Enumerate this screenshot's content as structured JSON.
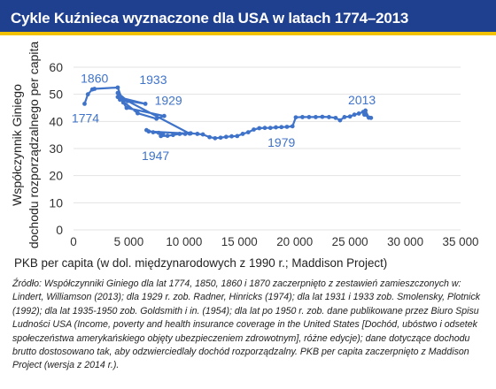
{
  "header": {
    "title": "Cykle Kuźnieca wyznaczone dla USA w latach 1774–2013"
  },
  "colors": {
    "title_bg": "#1f3f8f",
    "title_accent": "#f2c200",
    "series": "#3f73c9",
    "grid": "#e3e3e3"
  },
  "chart_data": {
    "type": "line",
    "xlabel": "PKB per capita (w dol. międzynarodowych z 1990 r.; Maddison Project)",
    "ylabel_line1": "Współczynnik Giniego",
    "ylabel_line2": "dochodu rozporządzalnego per capita",
    "xlim": [
      0,
      35000
    ],
    "ylim": [
      0,
      60
    ],
    "grid": true,
    "xticks": [
      0,
      5000,
      10000,
      15000,
      20000,
      25000,
      30000,
      35000
    ],
    "xtick_labels": [
      "0",
      "5 000",
      "10 000",
      "15 000",
      "20 000",
      "25 000",
      "30 000",
      "35 000"
    ],
    "yticks": [
      0,
      10,
      20,
      30,
      40,
      50,
      60
    ],
    "ytick_labels": [
      "0",
      "10",
      "20",
      "30",
      "40",
      "50",
      "60"
    ],
    "series": [
      {
        "points": [
          [
            1000,
            46.5
          ],
          [
            1300,
            50
          ],
          [
            1700,
            51.8
          ],
          [
            1900,
            52
          ],
          [
            4000,
            52.5
          ],
          [
            4500,
            47
          ],
          [
            4800,
            45
          ],
          [
            8200,
            42
          ],
          [
            7500,
            41
          ],
          [
            5800,
            43
          ],
          [
            4000,
            49
          ],
          [
            6500,
            46.5
          ],
          [
            4200,
            48
          ],
          [
            4000,
            50.5
          ],
          [
            4900,
            47.5
          ],
          [
            10500,
            35.5
          ],
          [
            6800,
            36.3
          ],
          [
            6600,
            36.8
          ],
          [
            7200,
            36
          ],
          [
            7700,
            35.8
          ],
          [
            8100,
            35.2
          ],
          [
            7900,
            34.6
          ],
          [
            8500,
            34.7
          ],
          [
            9000,
            35
          ],
          [
            9600,
            35.4
          ],
          [
            10100,
            35.4
          ],
          [
            10600,
            35.6
          ],
          [
            11200,
            35.4
          ],
          [
            11700,
            35.2
          ],
          [
            12300,
            34.2
          ],
          [
            12800,
            33.8
          ],
          [
            13300,
            34
          ],
          [
            13800,
            34.3
          ],
          [
            14300,
            34.5
          ],
          [
            14800,
            34.6
          ],
          [
            15300,
            35.4
          ],
          [
            15800,
            36
          ],
          [
            16300,
            37
          ],
          [
            16800,
            37.5
          ],
          [
            17300,
            37.6
          ],
          [
            17800,
            37.6
          ],
          [
            18300,
            37.8
          ],
          [
            18800,
            37.9
          ],
          [
            19300,
            38
          ],
          [
            19800,
            38.2
          ],
          [
            20100,
            41.5
          ],
          [
            20700,
            41.6
          ],
          [
            21300,
            41.6
          ],
          [
            21900,
            41.6
          ],
          [
            22500,
            41.7
          ],
          [
            23100,
            41.6
          ],
          [
            23700,
            41.3
          ],
          [
            24100,
            40.4
          ],
          [
            24500,
            41.6
          ],
          [
            25000,
            41.8
          ],
          [
            25400,
            42.5
          ],
          [
            25800,
            42.9
          ],
          [
            26200,
            43.5
          ],
          [
            26400,
            44
          ],
          [
            26700,
            41.4
          ],
          [
            26300,
            42.5
          ],
          [
            26900,
            41.3
          ]
        ]
      }
    ],
    "annotations": [
      {
        "text": "1860",
        "x": 1900,
        "y": 52
      },
      {
        "text": "1933",
        "x": 4000,
        "y": 52.5
      },
      {
        "text": "1929",
        "x": 6500,
        "y": 46.5
      },
      {
        "text": "1774",
        "x": 1000,
        "y": 46.5
      },
      {
        "text": "1947",
        "x": 7900,
        "y": 34.6
      },
      {
        "text": "1979",
        "x": 18800,
        "y": 37.9
      },
      {
        "text": "2013",
        "x": 26400,
        "y": 44
      }
    ]
  },
  "source": {
    "text": "Źródło: Współczynniki Giniego dla lat 1774, 1850, 1860 i 1870 zaczerpnięto z zestawień zamieszczonych w: Lindert, Williamson (2013); dla 1929 r. zob. Radner, Hinricks (1974); dla lat 1931 i 1933 zob. Smolensky, Plotnick (1992); dla lat 1935-1950 zob. Goldsmith i in. (1954); dla lat po 1950 r. zob. dane publikowane przez Biuro Spisu Ludności USA (Income, poverty and health insurance coverage in the United States [Dochód, ubóstwo i odsetek społeczeństwa amerykańskiego objęty ubezpieczeniem zdrowotnym], różne edycje); dane dotyczące dochodu brutto dostosowano tak, aby odzwierciedlały dochód rozporządzalny. PKB per capita zaczerpnięto z Maddison Project (wersja z 2014 r.)."
  }
}
